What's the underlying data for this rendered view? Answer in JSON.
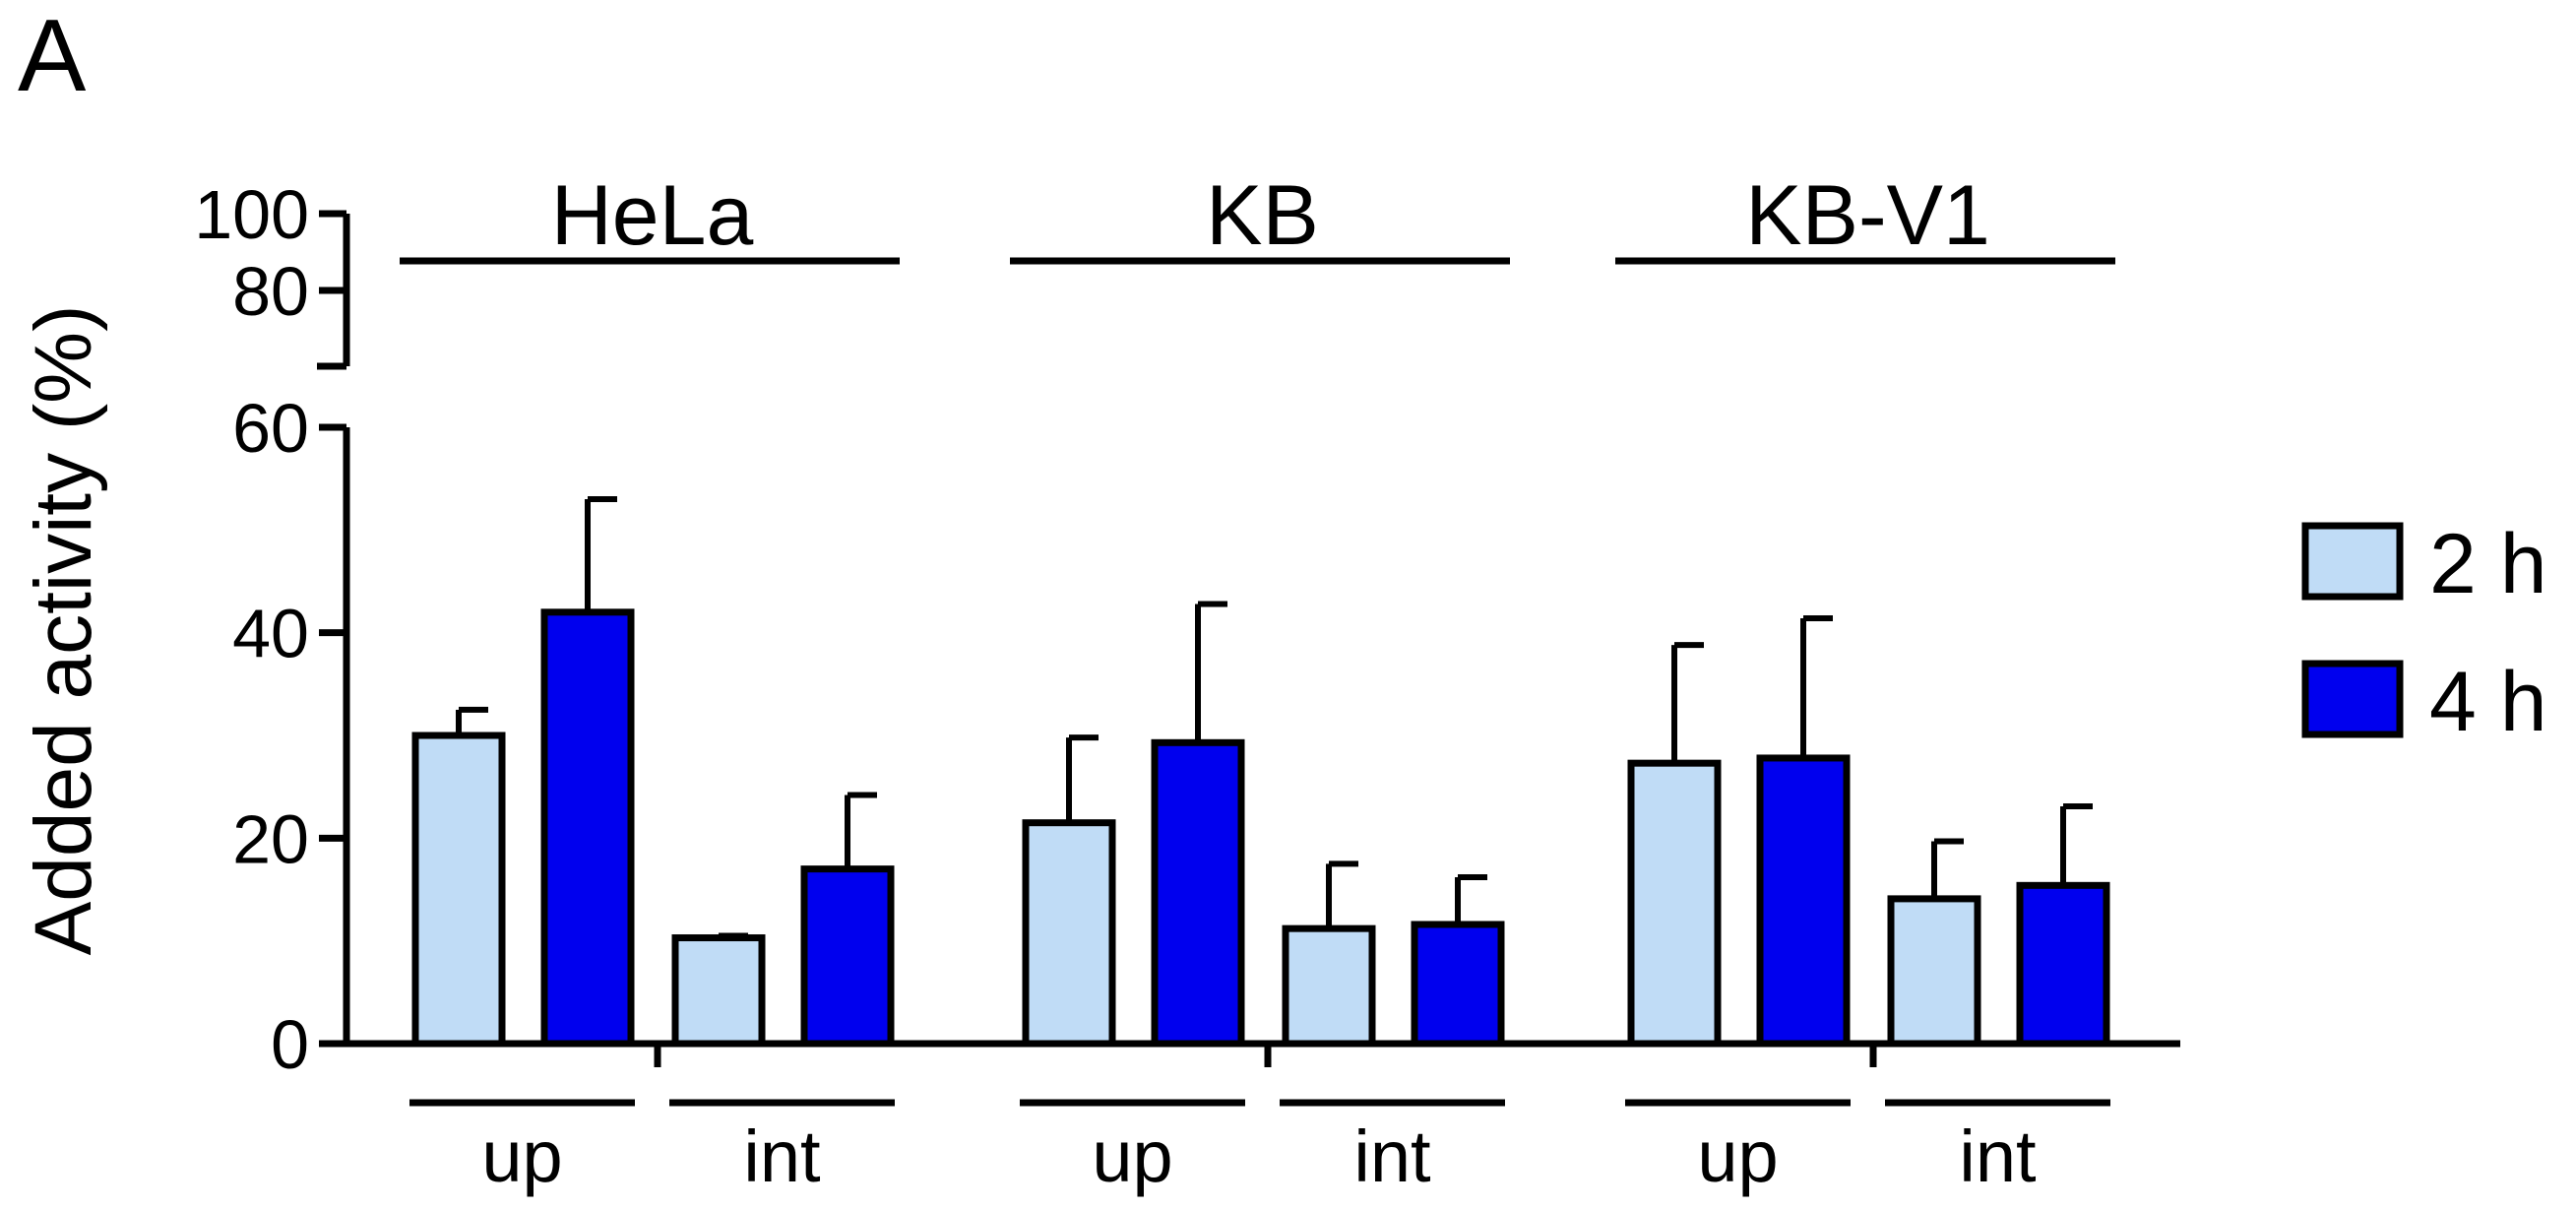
{
  "panel_label": "A",
  "chart_data": {
    "type": "bar",
    "ylabel": "Added activity (%)",
    "xlabel": "",
    "title": "",
    "ylim": [
      0,
      100
    ],
    "axis_break": [
      60,
      70
    ],
    "yticks": [
      "0",
      "20",
      "40",
      "60",
      "80",
      "100"
    ],
    "colors": {
      "2 h": "#c0dcf6",
      "4 h": "#0000ee",
      "outline": "#000000"
    },
    "groups": [
      {
        "name": "HeLa",
        "subgroups": [
          {
            "name": "up",
            "values": {
              "2 h": 30,
              "4 h": 42
            },
            "errors": {
              "2 h": 2.5,
              "4 h": 11
            }
          },
          {
            "name": "int",
            "values": {
              "2 h": 10.3,
              "4 h": 17
            },
            "errors": {
              "2 h": 0.2,
              "4 h": 7.2
            }
          }
        ]
      },
      {
        "name": "KB",
        "subgroups": [
          {
            "name": "up",
            "values": {
              "2 h": 21.5,
              "4 h": 29.3
            },
            "errors": {
              "2 h": 8.3,
              "4 h": 13.5
            }
          },
          {
            "name": "int",
            "values": {
              "2 h": 11.2,
              "4 h": 11.6
            },
            "errors": {
              "2 h": 6.3,
              "4 h": 4.6
            }
          }
        ]
      },
      {
        "name": "KB-V1",
        "subgroups": [
          {
            "name": "up",
            "values": {
              "2 h": 27.3,
              "4 h": 27.8
            },
            "errors": {
              "2 h": 11.5,
              "4 h": 13.6
            }
          },
          {
            "name": "int",
            "values": {
              "2 h": 14.1,
              "4 h": 15.4
            },
            "errors": {
              "2 h": 5.6,
              "4 h": 7.7
            }
          }
        ]
      }
    ],
    "series": [
      {
        "name": "2 h"
      },
      {
        "name": "4 h"
      }
    ],
    "legend": {
      "position": "right",
      "entries": [
        "2 h",
        "4 h"
      ]
    },
    "grid": false
  }
}
